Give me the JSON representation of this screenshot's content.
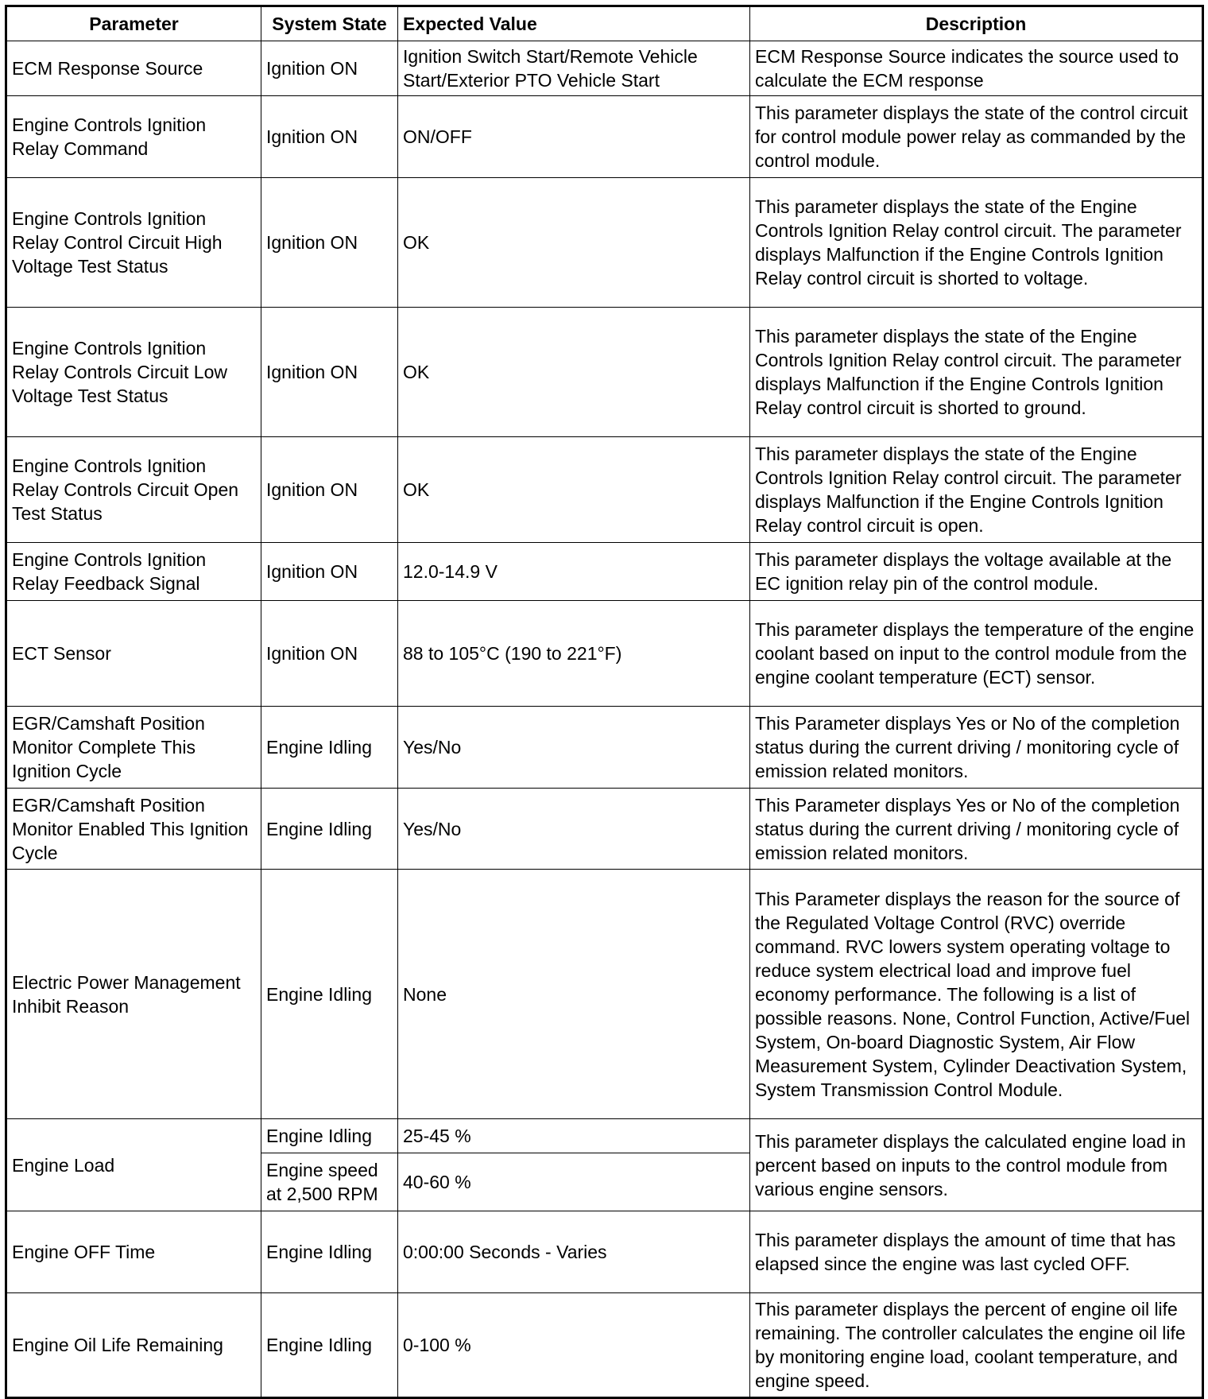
{
  "headers": [
    "Parameter",
    "System State",
    "Expected Value",
    "Description"
  ],
  "rows": [
    {
      "parameter": "ECM Response Source",
      "states": [
        {
          "state": "Ignition ON",
          "value": "Ignition Switch Start/Remote Vehicle Start/Exterior PTO Vehicle Start"
        }
      ],
      "description": "ECM Response Source indicates the source used to calculate the ECM response"
    },
    {
      "parameter": "Engine Controls Ignition Relay Command",
      "states": [
        {
          "state": "Ignition ON",
          "value": "ON/OFF"
        }
      ],
      "description": "This parameter displays the state of the control circuit for control module power relay as commanded by the control module."
    },
    {
      "parameter": "Engine Controls Ignition Relay Control Circuit High Voltage Test Status",
      "states": [
        {
          "state": "Ignition ON",
          "value": "OK"
        }
      ],
      "description": "This parameter displays the state of the Engine Controls Ignition Relay control circuit. The parameter displays Malfunction if the Engine Controls Ignition Relay control circuit is shorted to voltage."
    },
    {
      "parameter": "Engine Controls Ignition Relay Controls Circuit Low Voltage Test Status",
      "states": [
        {
          "state": "Ignition ON",
          "value": "OK"
        }
      ],
      "description": "This parameter displays the state of the Engine Controls Ignition Relay control circuit. The parameter displays Malfunction if the Engine Controls Ignition Relay control circuit is shorted to ground."
    },
    {
      "parameter": "Engine Controls Ignition Relay Controls Circuit Open Test Status",
      "states": [
        {
          "state": "Ignition ON",
          "value": "OK"
        }
      ],
      "description": "This parameter displays the state of the Engine Controls Ignition Relay control circuit. The parameter displays Malfunction if the Engine Controls Ignition Relay control circuit is open."
    },
    {
      "parameter": "Engine Controls Ignition Relay Feedback Signal",
      "states": [
        {
          "state": "Ignition ON",
          "value": "12.0-14.9 V"
        }
      ],
      "description": "This parameter displays the voltage available at the EC ignition relay pin of the control module."
    },
    {
      "parameter": "ECT Sensor",
      "states": [
        {
          "state": "Ignition ON",
          "value": "88 to 105°C (190 to 221°F)"
        }
      ],
      "description": "This parameter displays the temperature of the engine coolant based on input to the control module from the engine coolant temperature (ECT) sensor."
    },
    {
      "parameter": "EGR/Camshaft Position Monitor Complete This Ignition Cycle",
      "states": [
        {
          "state": "Engine Idling",
          "value": "Yes/No"
        }
      ],
      "description": "This Parameter displays Yes or No of the completion status during the current driving / monitoring cycle of emission related monitors."
    },
    {
      "parameter": "EGR/Camshaft Position Monitor Enabled This Ignition Cycle",
      "states": [
        {
          "state": "Engine Idling",
          "value": "Yes/No"
        }
      ],
      "description": "This Parameter displays Yes or No of the completion status during the current driving / monitoring cycle of emission related monitors."
    },
    {
      "parameter": "Electric Power Management Inhibit Reason",
      "states": [
        {
          "state": "Engine Idling",
          "value": "None"
        }
      ],
      "description": "This Parameter displays the reason for the source of the Regulated Voltage Control (RVC) override command. RVC lowers system operating voltage to reduce system electrical load and improve fuel economy performance. The following is a list of possible reasons. None, Control Function, Active/Fuel System, On-board Diagnostic System, Air Flow Measurement System, Cylinder Deactivation System, System Transmission Control Module."
    },
    {
      "parameter": "Engine Load",
      "states": [
        {
          "state": "Engine Idling",
          "value": "25-45 %"
        },
        {
          "state": "Engine speed at 2,500 RPM",
          "value": "40-60 %"
        }
      ],
      "description": "This parameter displays the calculated engine load in percent based on inputs to the control module from various engine sensors."
    },
    {
      "parameter": "Engine OFF Time",
      "states": [
        {
          "state": "Engine Idling",
          "value": "0:00:00 Seconds - Varies"
        }
      ],
      "description": "This parameter displays the amount of time that has elapsed since the engine was last cycled OFF."
    },
    {
      "parameter": "Engine Oil Life Remaining",
      "states": [
        {
          "state": "Engine Idling",
          "value": "0-100 %"
        }
      ],
      "description": "This parameter displays the percent of engine oil life remaining. The controller calculates the engine oil life by monitoring engine load, coolant temperature, and engine speed."
    }
  ]
}
